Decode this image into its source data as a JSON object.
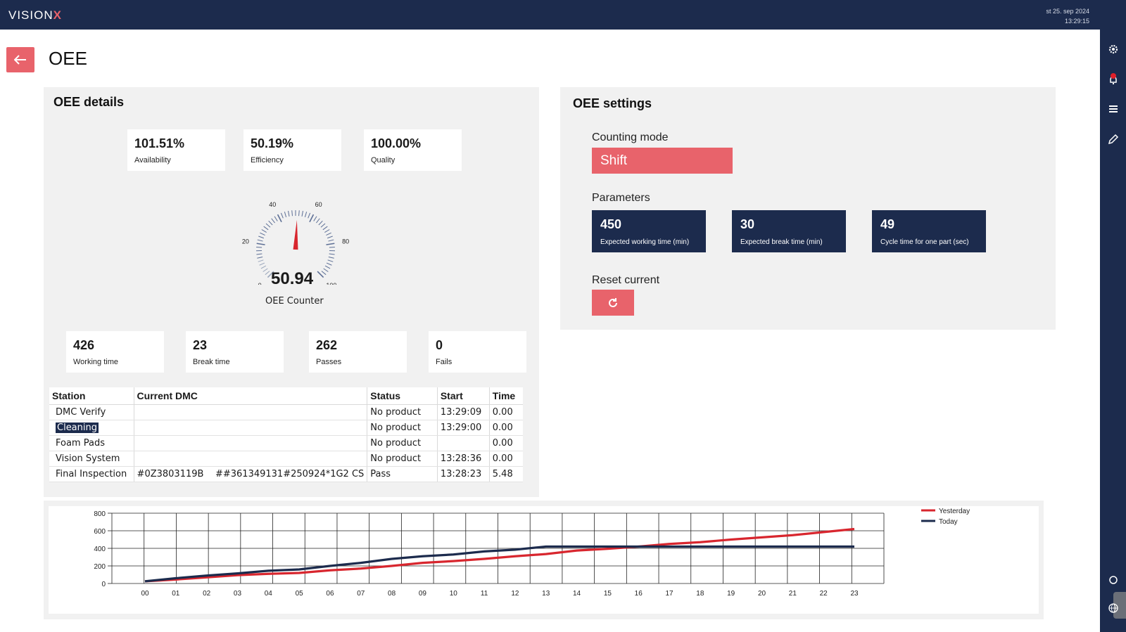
{
  "header": {
    "logo_text": "VISION",
    "logo_x": "X",
    "date": "st 25. sep 2024",
    "time": "13:29:15"
  },
  "page": {
    "title": "OEE",
    "back_icon": "arrow-left-icon"
  },
  "oee_details": {
    "title": "OEE details",
    "top_cards": [
      {
        "value": "101.51%",
        "label": "Availability"
      },
      {
        "value": "50.19%",
        "label": "Efficiency"
      },
      {
        "value": "100.00%",
        "label": "Quality"
      }
    ],
    "gauge": {
      "value": "50.94",
      "label": "OEE Counter",
      "min": 0,
      "max": 100,
      "ticks": [
        "0",
        "20",
        "40",
        "60",
        "80",
        "100"
      ],
      "needle_value": 50.94
    },
    "bottom_cards": [
      {
        "value": "426",
        "label": "Working time"
      },
      {
        "value": "23",
        "label": "Break time"
      },
      {
        "value": "262",
        "label": "Passes"
      },
      {
        "value": "0",
        "label": "Fails"
      }
    ],
    "table": {
      "headers": [
        "Station",
        "Current DMC",
        "Status",
        "Start",
        "Time"
      ],
      "rows": [
        {
          "station": "DMC Verify",
          "dmc1": "",
          "dmc2": "",
          "status": "No product",
          "start": "13:29:09",
          "time": "0.00"
        },
        {
          "station": "Cleaning",
          "dmc1": "",
          "dmc2": "",
          "status": "No product",
          "start": "13:29:00",
          "time": "0.00"
        },
        {
          "station": "Foam Pads",
          "dmc1": "",
          "dmc2": "",
          "status": "No product",
          "start": "",
          "time": "0.00"
        },
        {
          "station": "Vision System",
          "dmc1": "",
          "dmc2": "",
          "status": "No product",
          "start": "13:28:36",
          "time": "0.00"
        },
        {
          "station": "Final Inspection",
          "dmc1": "#0Z3803119B",
          "dmc2": "##361349131#250924*1G2 CS",
          "status": "Pass",
          "start": "13:28:23",
          "time": "5.48"
        }
      ]
    }
  },
  "oee_settings": {
    "title": "OEE settings",
    "counting_mode_label": "Counting mode",
    "counting_mode_value": "Shift",
    "parameters_label": "Parameters",
    "parameters": [
      {
        "value": "450",
        "label": "Expected working time (min)"
      },
      {
        "value": "30",
        "label": "Expected break time (min)"
      },
      {
        "value": "49",
        "label": "Cycle time for one part (sec)"
      }
    ],
    "reset_label": "Reset current",
    "reset_icon": "refresh-icon"
  },
  "sidebar_icons": [
    "gear-icon",
    "bell-icon",
    "menu-icon",
    "edit-icon",
    "settings-small-icon",
    "globe-icon"
  ],
  "colors": {
    "navy": "#1c2b4d",
    "accent": "#e8636b",
    "yesterday": "#d8262e",
    "today": "#1c2b4d"
  },
  "chart_data": {
    "type": "line",
    "categories": [
      "00",
      "01",
      "02",
      "03",
      "04",
      "05",
      "06",
      "07",
      "08",
      "09",
      "10",
      "11",
      "12",
      "13",
      "14",
      "15",
      "16",
      "17",
      "18",
      "19",
      "20",
      "21",
      "22",
      "23"
    ],
    "ylim": [
      0,
      800
    ],
    "yticks": [
      "0",
      "200",
      "400",
      "600",
      "800"
    ],
    "series": [
      {
        "name": "Yesterday",
        "values": [
          25,
          45,
          70,
          95,
          110,
          120,
          150,
          170,
          200,
          235,
          255,
          280,
          310,
          335,
          375,
          395,
          420,
          450,
          470,
          500,
          525,
          550,
          585,
          620
        ]
      },
      {
        "name": "Today",
        "values": [
          25,
          60,
          90,
          115,
          145,
          160,
          200,
          235,
          280,
          310,
          330,
          365,
          385,
          420,
          420,
          420,
          420,
          420,
          420,
          420,
          420,
          420,
          420,
          420
        ]
      }
    ],
    "legend": "top-right"
  }
}
